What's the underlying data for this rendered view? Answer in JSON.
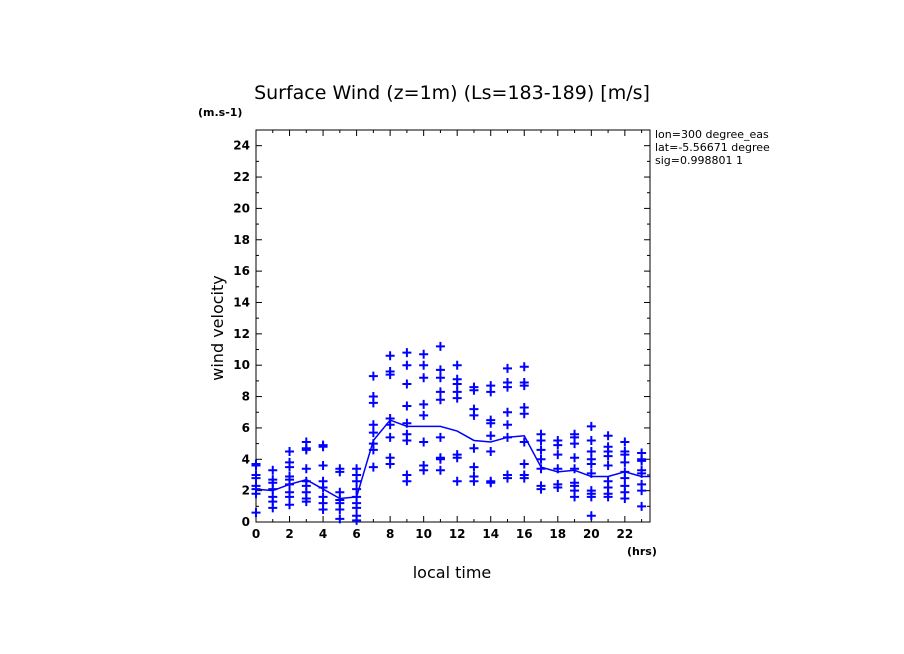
{
  "chart_data": {
    "type": "scatter",
    "title": "Surface Wind (z=1m) (Ls=183-189) [m/s]",
    "unit_label": "(m.s-1)",
    "xlabel": "local time",
    "x_unit_label": "(hrs)",
    "ylabel": "wind velocity",
    "xlim": [
      0,
      23.5
    ],
    "ylim": [
      0,
      25
    ],
    "x_ticks": [
      0,
      2,
      4,
      6,
      8,
      10,
      12,
      14,
      16,
      18,
      20,
      22
    ],
    "y_ticks": [
      0,
      2,
      4,
      6,
      8,
      10,
      12,
      14,
      16,
      18,
      20,
      22,
      24
    ],
    "info": [
      "lon=300 degree_eas",
      "lat=-5.56671 degree",
      "sig=0.998801 1"
    ],
    "grid": false,
    "color": "#0000ff",
    "mean_line": {
      "x": [
        0,
        1,
        2,
        3,
        4,
        5,
        6,
        7,
        8,
        9,
        10,
        11,
        12,
        13,
        14,
        15,
        16,
        17,
        18,
        19,
        20,
        21,
        22,
        23,
        23.5
      ],
      "y": [
        2.1,
        2.0,
        2.4,
        2.7,
        2.1,
        1.5,
        1.6,
        5.2,
        6.5,
        6.1,
        6.1,
        6.1,
        5.8,
        5.2,
        5.1,
        5.4,
        5.5,
        3.5,
        3.2,
        3.3,
        2.9,
        2.9,
        3.2,
        2.9,
        2.9
      ]
    },
    "points": [
      {
        "x": 0,
        "y": [
          3.7,
          3.6,
          3.0,
          2.8,
          2.3,
          2.1,
          1.8,
          0.6
        ]
      },
      {
        "x": 1,
        "y": [
          3.3,
          2.7,
          2.5,
          2.1,
          1.6,
          1.3,
          0.9
        ]
      },
      {
        "x": 2,
        "y": [
          4.5,
          3.8,
          3.5,
          2.9,
          2.7,
          2.4,
          1.9,
          1.6,
          1.1
        ]
      },
      {
        "x": 3,
        "y": [
          5.1,
          4.7,
          4.6,
          3.4,
          2.6,
          2.3,
          1.9,
          1.5,
          1.3
        ]
      },
      {
        "x": 4,
        "y": [
          4.9,
          4.8,
          3.6,
          2.6,
          2.2,
          1.6,
          1.2,
          0.8
        ]
      },
      {
        "x": 5,
        "y": [
          3.4,
          3.2,
          1.9,
          1.4,
          1.2,
          0.8,
          0.2
        ]
      },
      {
        "x": 6,
        "y": [
          3.4,
          3.0,
          2.6,
          2.1,
          1.6,
          1.2,
          0.9,
          0.4,
          0.1
        ]
      },
      {
        "x": 7,
        "y": [
          9.3,
          8.0,
          7.6,
          6.2,
          5.7,
          5.0,
          4.6,
          3.5
        ]
      },
      {
        "x": 8,
        "y": [
          10.6,
          9.6,
          9.4,
          6.6,
          6.2,
          5.4,
          4.1,
          3.7
        ]
      },
      {
        "x": 9,
        "y": [
          10.8,
          10.0,
          8.8,
          7.4,
          6.3,
          5.6,
          5.2,
          3.0,
          2.6
        ]
      },
      {
        "x": 10,
        "y": [
          10.7,
          10.0,
          9.2,
          7.5,
          6.8,
          5.1,
          3.6,
          3.3
        ]
      },
      {
        "x": 11,
        "y": [
          11.2,
          9.7,
          9.2,
          8.3,
          7.8,
          5.4,
          4.1,
          4.0,
          3.3
        ]
      },
      {
        "x": 12,
        "y": [
          10.0,
          9.1,
          8.8,
          8.3,
          7.9,
          4.3,
          4.1,
          2.6
        ]
      },
      {
        "x": 13,
        "y": [
          8.6,
          8.4,
          7.2,
          6.8,
          4.7,
          3.5,
          2.9,
          2.6
        ]
      },
      {
        "x": 14,
        "y": [
          8.7,
          8.3,
          6.5,
          6.3,
          5.5,
          4.5,
          2.6,
          2.5
        ]
      },
      {
        "x": 15,
        "y": [
          9.8,
          8.9,
          8.6,
          7.0,
          6.2,
          5.4,
          3.0,
          2.8
        ]
      },
      {
        "x": 16,
        "y": [
          9.9,
          8.9,
          8.7,
          7.3,
          6.9,
          5.1,
          3.7,
          3.0,
          2.8
        ]
      },
      {
        "x": 17,
        "y": [
          5.6,
          5.2,
          4.6,
          4.0,
          3.4,
          2.3,
          2.1
        ]
      },
      {
        "x": 18,
        "y": [
          5.2,
          4.9,
          4.3,
          3.4,
          2.4,
          2.2
        ]
      },
      {
        "x": 19,
        "y": [
          5.6,
          5.4,
          5.0,
          4.1,
          3.4,
          2.5,
          2.3,
          2.0,
          1.6
        ]
      },
      {
        "x": 20,
        "y": [
          6.1,
          5.2,
          4.5,
          4.0,
          3.7,
          3.1,
          2.0,
          1.8,
          1.6,
          0.4
        ]
      },
      {
        "x": 21,
        "y": [
          5.5,
          4.8,
          4.5,
          4.2,
          3.6,
          2.6,
          2.2,
          1.8,
          1.6
        ]
      },
      {
        "x": 22,
        "y": [
          5.1,
          4.5,
          4.3,
          3.8,
          3.2,
          2.8,
          2.3,
          1.9,
          1.5
        ]
      },
      {
        "x": 23,
        "y": [
          4.4,
          4.0,
          3.9,
          3.3,
          3.1,
          2.4,
          2.0,
          1.0
        ]
      }
    ]
  }
}
